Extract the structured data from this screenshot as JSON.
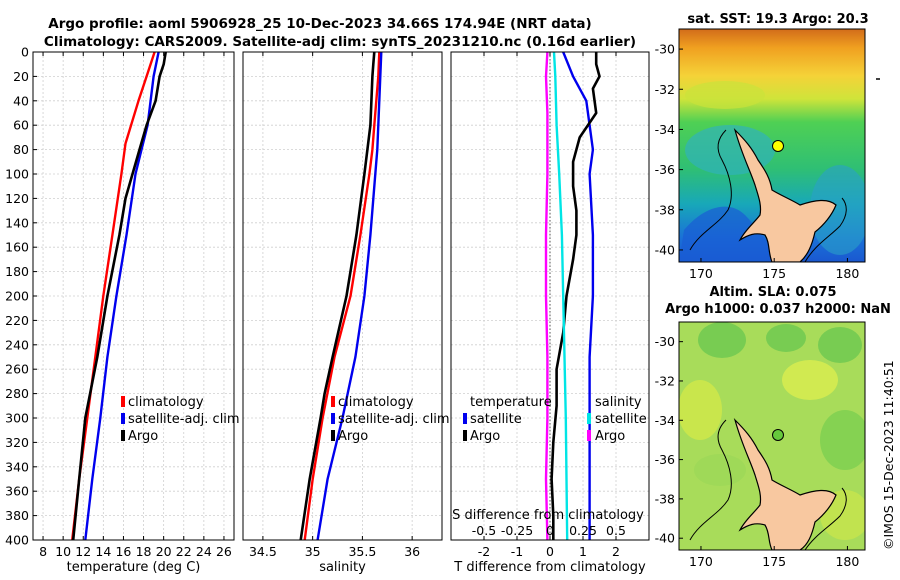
{
  "figure": {
    "title_line1": "Argo profile: aoml 5906928_25 10-Dec-2023 34.66S 174.94E (NRT data)",
    "title_line2": "Climatology: CARS2009. Satellite-adj clim: synTS_20231210.nc (0.16d earlier)",
    "stamp": "©IMOS 15-Dec-2023 11:40:51",
    "colors": {
      "climatology": "#ff0000",
      "satellite": "#0000ee",
      "argo": "#000000",
      "salinity_diff": "#ff00ff",
      "salinity_sat": "#00e5e5",
      "grid": "#c8c8c8",
      "land": "#f8c8a0"
    }
  },
  "chart_data": [
    {
      "type": "line",
      "name": "temperature",
      "xlabel": "temperature (deg C)",
      "ylabel": "",
      "xlim": [
        7,
        27
      ],
      "ylim": [
        400,
        0
      ],
      "xticks": [
        8,
        10,
        12,
        14,
        16,
        18,
        20,
        22,
        24,
        26
      ],
      "yticks": [
        0,
        20,
        40,
        60,
        80,
        100,
        120,
        140,
        160,
        180,
        200,
        220,
        240,
        260,
        280,
        300,
        320,
        340,
        360,
        380,
        400
      ],
      "grid": true,
      "legend": {
        "position": "lower-right",
        "entries": [
          "climatology",
          "satellite-adj. clim",
          "Argo"
        ]
      },
      "series": [
        {
          "name": "climatology",
          "color": "#ff0000",
          "depth": [
            0,
            20,
            40,
            75,
            100,
            150,
            200,
            250,
            300,
            350,
            400
          ],
          "values": [
            19.1,
            18.3,
            17.5,
            16.2,
            15.8,
            14.9,
            14.0,
            13.2,
            12.4,
            11.6,
            10.9
          ]
        },
        {
          "name": "satellite-adj. clim",
          "color": "#0000ee",
          "depth": [
            0,
            20,
            40,
            60,
            80,
            100,
            150,
            200,
            250,
            300,
            350,
            400
          ],
          "values": [
            19.5,
            19.0,
            18.7,
            18.4,
            17.8,
            17.2,
            16.3,
            15.3,
            14.4,
            13.7,
            12.9,
            12.2
          ]
        },
        {
          "name": "Argo",
          "color": "#000000",
          "depth": [
            0,
            10,
            20,
            40,
            60,
            80,
            100,
            120,
            150,
            200,
            250,
            300,
            350,
            400
          ],
          "values": [
            20.2,
            20.0,
            19.6,
            19.2,
            18.3,
            17.6,
            16.9,
            16.2,
            15.6,
            14.4,
            13.4,
            12.2,
            11.6,
            11.0
          ]
        }
      ]
    },
    {
      "type": "line",
      "name": "salinity",
      "xlabel": "salinity",
      "ylabel": "",
      "xlim": [
        34.3,
        36.3
      ],
      "ylim": [
        400,
        0
      ],
      "xticks": [
        34.5,
        35,
        35.5,
        36
      ],
      "xtick_labels": [
        "34.5",
        "35",
        "35.5",
        "36"
      ],
      "grid": true,
      "legend": {
        "position": "lower-right",
        "entries": [
          "climatology",
          "satellite-adj. clim",
          "Argo"
        ]
      },
      "series": [
        {
          "name": "climatology",
          "color": "#ff0000",
          "depth": [
            0,
            20,
            40,
            60,
            80,
            100,
            150,
            200,
            250,
            300,
            350,
            400
          ],
          "values": [
            35.67,
            35.66,
            35.64,
            35.62,
            35.6,
            35.57,
            35.48,
            35.38,
            35.22,
            35.1,
            35.0,
            34.92
          ]
        },
        {
          "name": "satellite-adj. clim",
          "color": "#0000ee",
          "depth": [
            0,
            20,
            40,
            60,
            80,
            100,
            150,
            200,
            250,
            300,
            350,
            400
          ],
          "values": [
            35.69,
            35.68,
            35.67,
            35.66,
            35.65,
            35.63,
            35.58,
            35.52,
            35.43,
            35.3,
            35.15,
            35.05
          ]
        },
        {
          "name": "Argo",
          "color": "#000000",
          "depth": [
            0,
            10,
            20,
            40,
            60,
            80,
            100,
            150,
            200,
            250,
            280,
            300,
            350,
            400
          ],
          "values": [
            35.62,
            35.61,
            35.6,
            35.59,
            35.58,
            35.55,
            35.52,
            35.44,
            35.34,
            35.2,
            35.12,
            35.08,
            34.97,
            34.88
          ]
        }
      ]
    },
    {
      "type": "line",
      "name": "difference from climatology",
      "xlabel": "T difference from climatology",
      "x2label": "S difference from climatology",
      "xlim": [
        -3,
        3
      ],
      "ylim": [
        400,
        0
      ],
      "xticks": [
        -2,
        -1,
        0,
        1,
        2
      ],
      "x2lim": [
        -0.75,
        0.75
      ],
      "x2ticks": [
        -0.5,
        -0.25,
        0,
        0.25,
        0.5
      ],
      "x2tick_labels": [
        "-0.5",
        "-0.25",
        "0",
        "0.25",
        "0.5"
      ],
      "grid": true,
      "legend_left": {
        "title": "temperature",
        "entries": [
          "satellite",
          "Argo"
        ]
      },
      "legend_right": {
        "title": "salinity",
        "entries": [
          "satellite",
          "Argo"
        ]
      },
      "series": [
        {
          "name": "temperature satellite",
          "axis": "T",
          "color": "#0000ee",
          "depth": [
            0,
            20,
            40,
            60,
            80,
            100,
            150,
            200,
            250,
            300,
            350,
            400
          ],
          "values": [
            0.4,
            0.7,
            1.1,
            1.2,
            1.3,
            1.2,
            1.3,
            1.3,
            1.2,
            1.2,
            1.2,
            1.2
          ]
        },
        {
          "name": "temperature Argo",
          "axis": "T",
          "color": "#000000",
          "depth": [
            0,
            10,
            20,
            30,
            50,
            70,
            90,
            110,
            130,
            150,
            170,
            200,
            230,
            260,
            290,
            320,
            350,
            380,
            400
          ],
          "values": [
            1.4,
            1.4,
            1.5,
            1.3,
            1.4,
            0.9,
            0.7,
            0.7,
            0.8,
            0.8,
            0.7,
            0.5,
            0.4,
            0.2,
            0.2,
            0.1,
            0.05,
            0.1,
            0.1
          ]
        },
        {
          "name": "salinity satellite",
          "axis": "S",
          "color": "#00e5e5",
          "depth": [
            0,
            20,
            60,
            100,
            150,
            200,
            300,
            400
          ],
          "values": [
            0.03,
            0.04,
            0.05,
            0.07,
            0.09,
            0.1,
            0.12,
            0.13
          ]
        },
        {
          "name": "salinity Argo",
          "axis": "S",
          "color": "#ff00ff",
          "depth": [
            0,
            20,
            50,
            100,
            150,
            200,
            250,
            300,
            350,
            400
          ],
          "values": [
            -0.02,
            -0.03,
            -0.02,
            -0.02,
            -0.03,
            -0.03,
            -0.02,
            -0.02,
            -0.03,
            -0.02
          ]
        }
      ]
    },
    {
      "type": "heatmap",
      "name": "sst map",
      "title": "sat. SST: 19.3 Argo: 20.3",
      "xlim": [
        168.5,
        181.2
      ],
      "ylim": [
        -40.6,
        -29.0
      ],
      "xticks": [
        170,
        175,
        180
      ],
      "yticks": [
        -30,
        -32,
        -34,
        -36,
        -38,
        -40
      ],
      "marker": {
        "lon": 174.94,
        "lat": -34.66
      }
    },
    {
      "type": "heatmap",
      "name": "sla map",
      "title_line1": "Altim. SLA: 0.075",
      "title_line2": "Argo h1000: 0.037 h2000: NaN",
      "xlim": [
        168.5,
        181.2
      ],
      "ylim": [
        -40.6,
        -29.0
      ],
      "xticks": [
        170,
        175,
        180
      ],
      "yticks": [
        -30,
        -32,
        -34,
        -36,
        -38,
        -40
      ],
      "marker": {
        "lon": 174.94,
        "lat": -34.66
      }
    }
  ]
}
